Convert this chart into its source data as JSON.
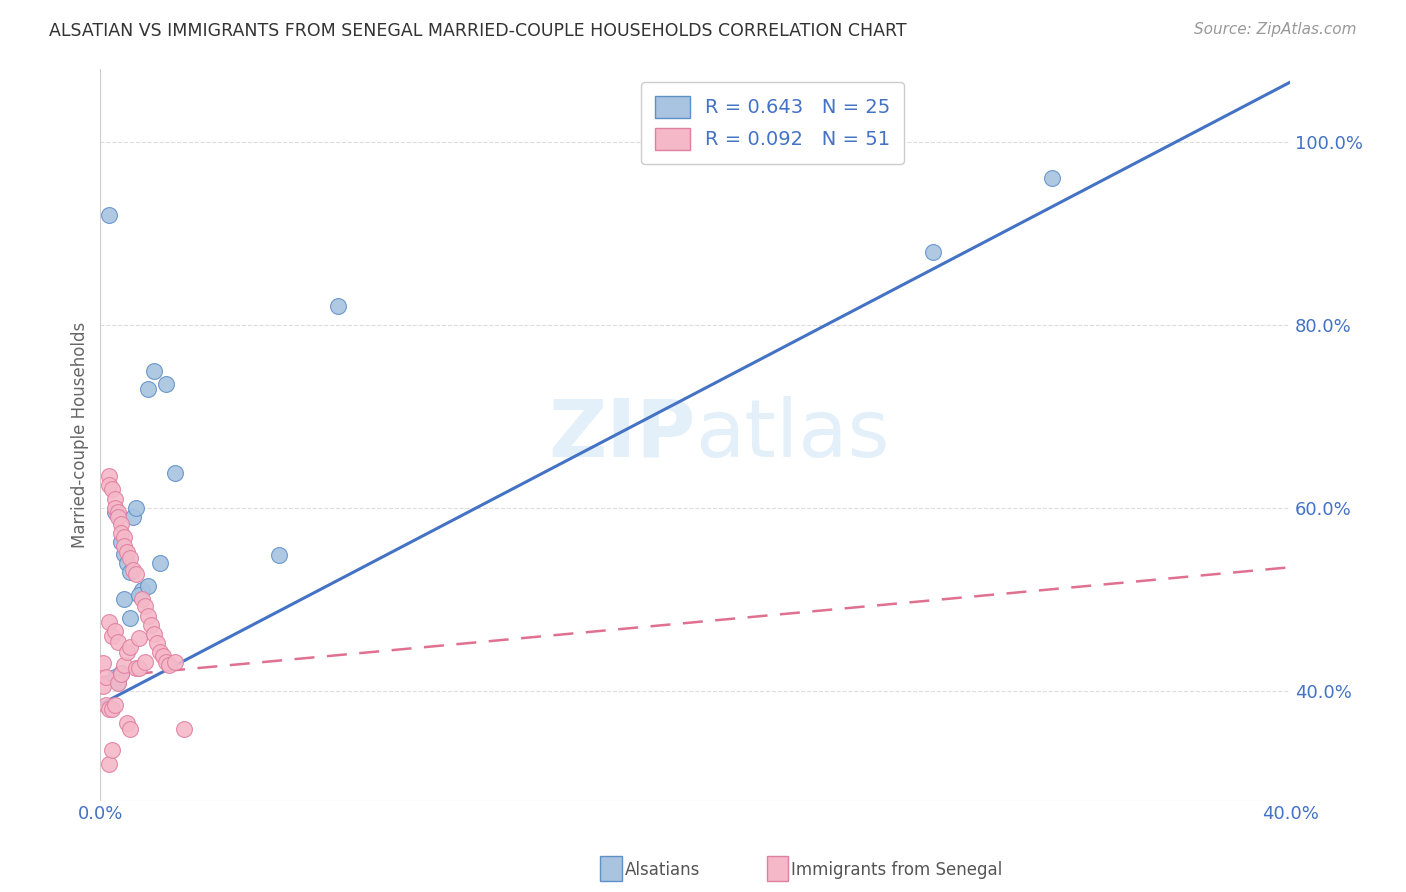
{
  "title": "ALSATIAN VS IMMIGRANTS FROM SENEGAL MARRIED-COUPLE HOUSEHOLDS CORRELATION CHART",
  "source": "Source: ZipAtlas.com",
  "ylabel": "Married-couple Households",
  "xlim": [
    0.0,
    0.4
  ],
  "ylim": [
    0.28,
    1.08
  ],
  "yticks": [
    0.4,
    0.6,
    0.8,
    1.0
  ],
  "ytick_labels": [
    "40.0%",
    "60.0%",
    "80.0%",
    "100.0%"
  ],
  "xticks": [
    0.0,
    0.1,
    0.2,
    0.3,
    0.4
  ],
  "xtick_labels": [
    "0.0%",
    "",
    "",
    "",
    "40.0%"
  ],
  "blue_color": "#a8c4e0",
  "blue_edge_color": "#6090c8",
  "blue_line_color": "#4472c4",
  "pink_color": "#f4b8c8",
  "pink_edge_color": "#e080a0",
  "pink_line_color": "#e07090",
  "text_color": "#4472c4",
  "grid_color": "#dddddd",
  "background_color": "#ffffff",
  "blue_line_x": [
    0.0,
    0.4
  ],
  "blue_line_y": [
    0.385,
    1.065
  ],
  "pink_line_x": [
    0.0,
    0.4
  ],
  "pink_line_y": [
    0.415,
    0.535
  ],
  "als_x": [
    0.003,
    0.005,
    0.007,
    0.008,
    0.009,
    0.01,
    0.011,
    0.012,
    0.014,
    0.016,
    0.018,
    0.022,
    0.025,
    0.06,
    0.08,
    0.28,
    0.32,
    0.005,
    0.006,
    0.007,
    0.008,
    0.01,
    0.013,
    0.016,
    0.02
  ],
  "als_y": [
    0.92,
    0.595,
    0.563,
    0.55,
    0.54,
    0.53,
    0.59,
    0.6,
    0.51,
    0.73,
    0.75,
    0.735,
    0.638,
    0.548,
    0.82,
    0.88,
    0.96,
    0.415,
    0.41,
    0.42,
    0.5,
    0.48,
    0.505,
    0.515,
    0.54
  ],
  "sen_x": [
    0.001,
    0.001,
    0.002,
    0.002,
    0.003,
    0.003,
    0.003,
    0.003,
    0.004,
    0.004,
    0.004,
    0.005,
    0.005,
    0.005,
    0.005,
    0.006,
    0.006,
    0.006,
    0.006,
    0.007,
    0.007,
    0.007,
    0.008,
    0.008,
    0.008,
    0.009,
    0.009,
    0.009,
    0.01,
    0.01,
    0.01,
    0.011,
    0.012,
    0.012,
    0.013,
    0.013,
    0.014,
    0.015,
    0.015,
    0.016,
    0.017,
    0.018,
    0.019,
    0.02,
    0.021,
    0.022,
    0.023,
    0.025,
    0.003,
    0.004,
    0.028
  ],
  "sen_y": [
    0.43,
    0.405,
    0.415,
    0.385,
    0.635,
    0.625,
    0.475,
    0.38,
    0.62,
    0.46,
    0.38,
    0.61,
    0.6,
    0.465,
    0.385,
    0.595,
    0.59,
    0.453,
    0.408,
    0.582,
    0.572,
    0.418,
    0.568,
    0.558,
    0.428,
    0.552,
    0.442,
    0.365,
    0.545,
    0.448,
    0.358,
    0.532,
    0.425,
    0.528,
    0.458,
    0.425,
    0.5,
    0.493,
    0.432,
    0.482,
    0.472,
    0.462,
    0.452,
    0.442,
    0.438,
    0.432,
    0.428,
    0.432,
    0.32,
    0.335,
    0.358
  ]
}
